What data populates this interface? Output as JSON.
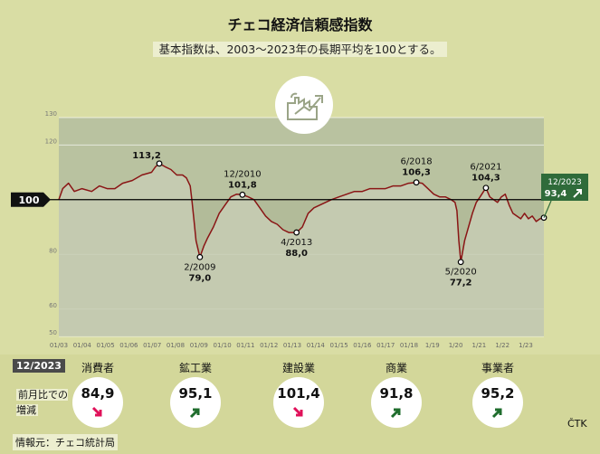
{
  "header": {
    "title": "チェコ経済信頼感指数",
    "subtitle": "基本指数は、2003〜2023年の長期平均を100とする。"
  },
  "chart_data": {
    "type": "line",
    "title": "チェコ経済信頼感指数",
    "subtitle": "基本指数は、2003〜2023年の長期平均を100とする。",
    "ylim": [
      50,
      130
    ],
    "y_ticks": [
      "130",
      "120",
      "80",
      "60",
      "50"
    ],
    "x_ticks": [
      "01/03",
      "01/04",
      "01/05",
      "01/06",
      "01/07",
      "01/08",
      "01/09",
      "01/10",
      "01/11",
      "01/12",
      "01/13",
      "01/14",
      "01/15",
      "01/16",
      "01/17",
      "01/18",
      "1/19",
      "1/20",
      "1/21",
      "1/22",
      "1/23"
    ],
    "reference_line": {
      "value": 100,
      "label": "100"
    },
    "series": [
      {
        "x": [
          "2003-01",
          "2003-03",
          "2003-06",
          "2003-09",
          "2004-01",
          "2004-06",
          "2004-10",
          "2005-02",
          "2005-06",
          "2005-10",
          "2006-03",
          "2006-08",
          "2007-01",
          "2007-03",
          "2007-05",
          "2007-08",
          "2007-11",
          "2008-02",
          "2008-05",
          "2008-07",
          "2008-09",
          "2008-10",
          "2008-11",
          "2008-12",
          "2009-02",
          "2009-04",
          "2009-06",
          "2009-09",
          "2009-12",
          "2010-03",
          "2010-06",
          "2010-09",
          "2010-12",
          "2011-03",
          "2011-06",
          "2011-09",
          "2011-12",
          "2012-03",
          "2012-06",
          "2012-09",
          "2012-12",
          "2013-04",
          "2013-07",
          "2013-10",
          "2014-01",
          "2014-04",
          "2014-07",
          "2014-10",
          "2015-02",
          "2015-06",
          "2015-10",
          "2016-02",
          "2016-06",
          "2016-10",
          "2017-02",
          "2017-06",
          "2017-10",
          "2018-02",
          "2018-06",
          "2018-09",
          "2018-12",
          "2019-03",
          "2019-06",
          "2019-09",
          "2019-12",
          "2020-02",
          "2020-03",
          "2020-04",
          "2020-05",
          "2020-07",
          "2020-09",
          "2020-11",
          "2021-01",
          "2021-03",
          "2021-06",
          "2021-08",
          "2021-10",
          "2021-12",
          "2022-02",
          "2022-04",
          "2022-06",
          "2022-08",
          "2022-10",
          "2022-12",
          "2023-02",
          "2023-04",
          "2023-06",
          "2023-08",
          "2023-10",
          "2023-12"
        ],
        "values": [
          100,
          104,
          106,
          103,
          104,
          103,
          105,
          104,
          104,
          106,
          107,
          109,
          110,
          112,
          113.2,
          112,
          111,
          109,
          109,
          108,
          105,
          99,
          92,
          85,
          79,
          83,
          86,
          90,
          95,
          98,
          101,
          102,
          101.8,
          101,
          100,
          97,
          94,
          92,
          91,
          89,
          88,
          88,
          90,
          95,
          97,
          98,
          99,
          100,
          101,
          102,
          103,
          103,
          104,
          104,
          104,
          105,
          105,
          106,
          106.3,
          106,
          104,
          102,
          101,
          101,
          100,
          99,
          96,
          85,
          77.2,
          85,
          90,
          95,
          99,
          101,
          104.3,
          101,
          100,
          99,
          101,
          102,
          98,
          95,
          94,
          93,
          95,
          93,
          94,
          92,
          93,
          93.4
        ]
      }
    ],
    "annotations": [
      {
        "label": "113,2"
      },
      {
        "label": "2/2009",
        "value": "79,0"
      },
      {
        "label": "12/2010",
        "value": "101,8"
      },
      {
        "label": "4/2013",
        "value": "88,0"
      },
      {
        "label": "6/2018",
        "value": "106,3"
      },
      {
        "label": "5/2020",
        "value": "77,2"
      },
      {
        "label": "6/2021",
        "value": "104,3"
      },
      {
        "label": "12/2023",
        "value": "93,4"
      }
    ],
    "colors": {
      "line": "#8a1515",
      "area": "#c7cdb4",
      "band": "#b2bb99",
      "reference": "#000000",
      "callout": "#2f6b3a"
    }
  },
  "summary": {
    "period": "12/2023",
    "row_label": "前月比での増減",
    "items": [
      {
        "name": "消費者",
        "value": "84,9",
        "trend": "down",
        "color": "#e0105a"
      },
      {
        "name": "鉱工業",
        "value": "95,1",
        "trend": "up",
        "color": "#1f6d2d"
      },
      {
        "name": "建設業",
        "value": "101,4",
        "trend": "down",
        "color": "#e0105a"
      },
      {
        "name": "商業",
        "value": "91,8",
        "trend": "up",
        "color": "#1f6d2d"
      },
      {
        "name": "事業者",
        "value": "95,2",
        "trend": "up",
        "color": "#1f6d2d"
      }
    ]
  },
  "footer": {
    "source": "情報元：チェコ統計局",
    "agency": "ČTK"
  },
  "icon": {
    "name": "factory-growth-icon"
  }
}
